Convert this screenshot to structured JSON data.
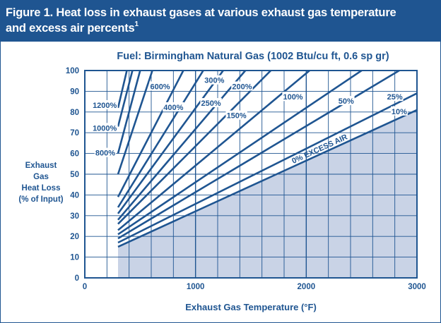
{
  "header": {
    "title_line1": "Figure 1. Heat loss in exhaust gases at various exhaust gas temperature",
    "title_line2": "and excess air percents",
    "footnote_mark": "1"
  },
  "colors": {
    "header_bg": "#1f5591",
    "text": "#1f5591",
    "line": "#1f5591",
    "shade": "#c9d3e6"
  },
  "chart_data": {
    "type": "line",
    "title": "Fuel: Birmingham Natural Gas (1002 Btu/cu ft, 0.6 sp gr)",
    "xlabel": "Exhaust Gas Temperature (°F)",
    "ylabel": [
      "Exhaust",
      "Gas",
      "Heat Loss",
      "(% of Input)"
    ],
    "xlim": [
      0,
      3000
    ],
    "ylim": [
      0,
      100
    ],
    "x_ticks": [
      0,
      1000,
      2000,
      3000
    ],
    "y_ticks": [
      0,
      10,
      20,
      30,
      40,
      50,
      60,
      70,
      80,
      90,
      100
    ],
    "grid": true,
    "shaded_region_label": "0% EXCESS AIR",
    "series": [
      {
        "name": "0% EXCESS AIR",
        "x": [
          300,
          3000
        ],
        "y": [
          15,
          81
        ]
      },
      {
        "name": "10%",
        "x": [
          300,
          3000
        ],
        "y": [
          17,
          89
        ]
      },
      {
        "name": "25%",
        "x": [
          300,
          2840
        ],
        "y": [
          19,
          100
        ]
      },
      {
        "name": "50%",
        "x": [
          300,
          2500
        ],
        "y": [
          21,
          100
        ]
      },
      {
        "name": "100%",
        "x": [
          300,
          2030
        ],
        "y": [
          23,
          100
        ]
      },
      {
        "name": "150%",
        "x": [
          300,
          1680
        ],
        "y": [
          26,
          100
        ]
      },
      {
        "name": "200%",
        "x": [
          300,
          1450
        ],
        "y": [
          28,
          100
        ]
      },
      {
        "name": "250%",
        "x": [
          300,
          1250
        ],
        "y": [
          31,
          100
        ]
      },
      {
        "name": "300%",
        "x": [
          300,
          1070
        ],
        "y": [
          34,
          100
        ]
      },
      {
        "name": "400%",
        "x": [
          300,
          890
        ],
        "y": [
          39,
          100
        ]
      },
      {
        "name": "600%",
        "x": [
          300,
          610
        ],
        "y": [
          50,
          100
        ]
      },
      {
        "name": "800%",
        "x": [
          300,
          500
        ],
        "y": [
          60,
          100
        ]
      },
      {
        "name": "1000%",
        "x": [
          300,
          430
        ],
        "y": [
          73,
          100
        ]
      },
      {
        "name": "1200%",
        "x": [
          300,
          380
        ],
        "y": [
          82,
          100
        ]
      }
    ],
    "annotations": [
      {
        "text": "1200%",
        "x": 180,
        "y": 83
      },
      {
        "text": "1000%",
        "x": 180,
        "y": 72
      },
      {
        "text": "800%",
        "x": 185,
        "y": 60
      },
      {
        "text": "600%",
        "x": 680,
        "y": 92
      },
      {
        "text": "400%",
        "x": 800,
        "y": 82
      },
      {
        "text": "300%",
        "x": 1170,
        "y": 95
      },
      {
        "text": "250%",
        "x": 1140,
        "y": 84
      },
      {
        "text": "200%",
        "x": 1420,
        "y": 92
      },
      {
        "text": "150%",
        "x": 1370,
        "y": 78
      },
      {
        "text": "100%",
        "x": 1880,
        "y": 87
      },
      {
        "text": "50%",
        "x": 2360,
        "y": 85
      },
      {
        "text": "25%",
        "x": 2800,
        "y": 87
      },
      {
        "text": "10%",
        "x": 2840,
        "y": 80
      }
    ]
  }
}
